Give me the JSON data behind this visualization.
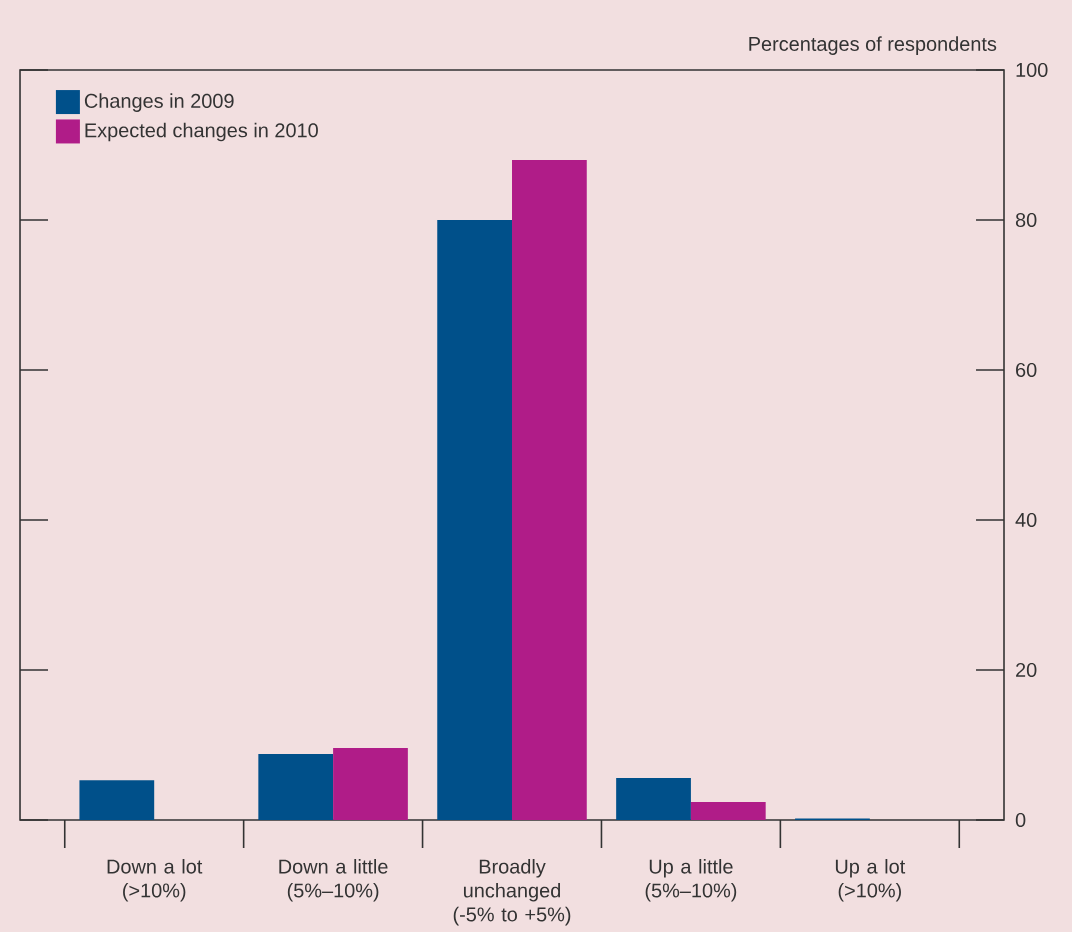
{
  "chart_data": {
    "type": "bar",
    "ylabel": "Percentages of respondents",
    "categories": [
      "Down a lot\n(>10%)",
      "Down a little\n(5%–10%)",
      "Broadly\nunchanged\n(-5% to +5%)",
      "Up a little\n(5%–10%)",
      "Up a lot\n(>10%)"
    ],
    "series": [
      {
        "name": "Changes in 2009",
        "color": "#00508a",
        "values": [
          5.3,
          8.8,
          80,
          5.6,
          0.2
        ]
      },
      {
        "name": "Expected changes in 2010",
        "color": "#b01c88",
        "values": [
          0,
          9.6,
          88,
          2.4,
          0
        ]
      }
    ],
    "ylim": [
      0,
      100
    ],
    "yticks": [
      0,
      20,
      40,
      60,
      80,
      100
    ],
    "grid": false,
    "legend": "top left"
  }
}
